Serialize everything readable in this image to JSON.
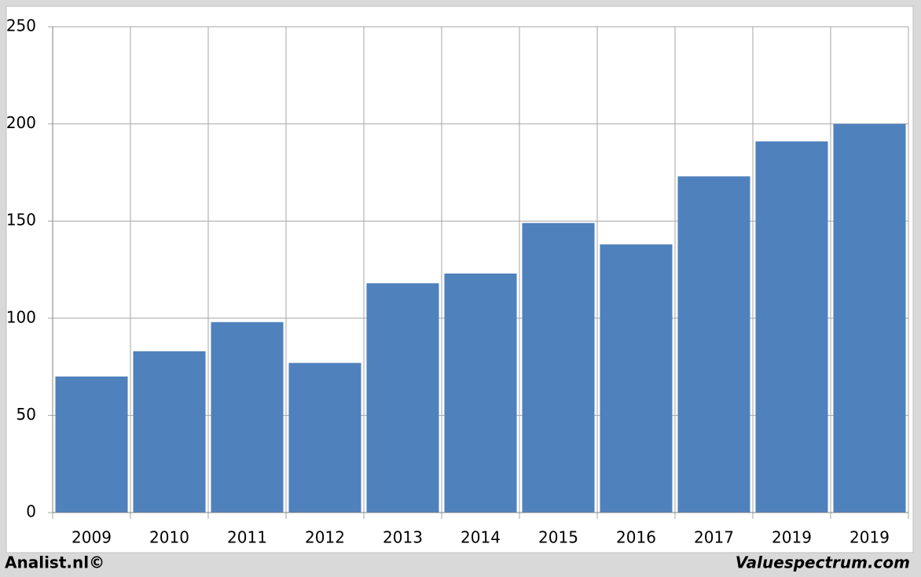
{
  "chart_data": {
    "type": "bar",
    "categories": [
      "2009",
      "2010",
      "2011",
      "2012",
      "2013",
      "2014",
      "2015",
      "2016",
      "2017",
      "2019",
      "2019"
    ],
    "values": [
      70,
      83,
      98,
      77,
      118,
      123,
      149,
      138,
      173,
      191,
      200
    ],
    "color": "#4f81bd",
    "ylim": [
      0,
      250
    ],
    "yticks": [
      0,
      50,
      100,
      150,
      200,
      250
    ],
    "grid": true,
    "annotations": [
      "Analist.nl©",
      "Valuespectrum.com"
    ]
  }
}
